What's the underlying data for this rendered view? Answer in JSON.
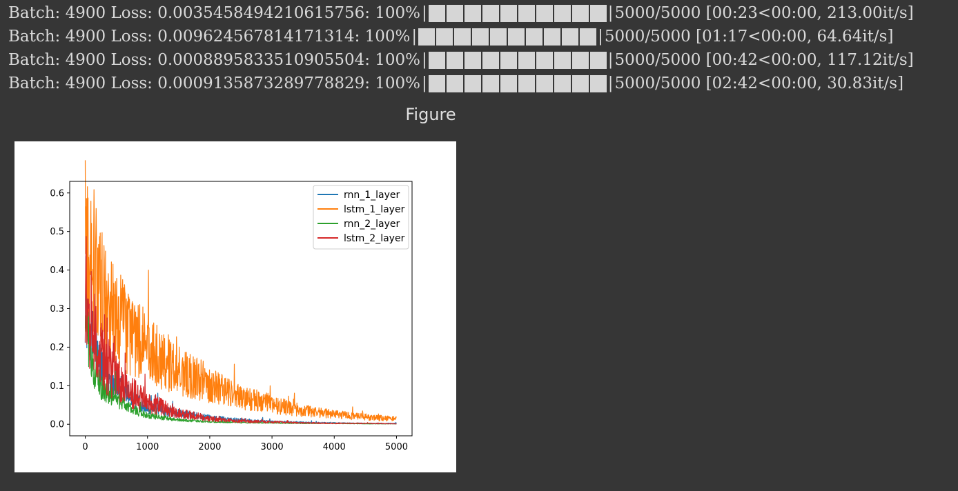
{
  "console": {
    "lines": [
      {
        "prefix": "Batch: 4900 Loss: 0.0035458494210615756: 100%",
        "suffix": " 5000/5000 [00:23<00:00, 213.00it/s]",
        "progress": 1.0
      },
      {
        "prefix": "Batch: 4900 Loss: 0.009624567814171314: 100%",
        "suffix": " 5000/5000 [01:17<00:00, 64.64it/s]",
        "progress": 1.0
      },
      {
        "prefix": "Batch: 4900 Loss: 0.0008895833510905504: 100%",
        "suffix": " 5000/5000 [00:42<00:00, 117.12it/s]",
        "progress": 1.0
      },
      {
        "prefix": "Batch: 4900 Loss: 0.0009135873289778829: 100%",
        "suffix": " 5000/5000 [02:42<00:00, 30.83it/s]",
        "progress": 1.0
      }
    ]
  },
  "figure": {
    "title": "Figure"
  },
  "chart_data": {
    "type": "line",
    "title": "",
    "xlabel": "",
    "ylabel": "",
    "xlim": [
      -250,
      5250
    ],
    "ylim": [
      -0.03,
      0.63
    ],
    "xticks": [
      0,
      1000,
      2000,
      3000,
      4000,
      5000
    ],
    "yticks": [
      0.0,
      0.1,
      0.2,
      0.3,
      0.4,
      0.5,
      0.6
    ],
    "legend_position": "top-right",
    "grid": false,
    "series": [
      {
        "name": "rnn_1_layer",
        "color": "#1f77b4",
        "x": [
          0,
          100,
          200,
          300,
          500,
          750,
          1000,
          1500,
          2000,
          2500,
          3000,
          3500,
          4000,
          4500,
          5000
        ],
        "y": [
          0.3,
          0.2,
          0.15,
          0.12,
          0.09,
          0.06,
          0.04,
          0.025,
          0.015,
          0.01,
          0.006,
          0.004,
          0.003,
          0.002,
          0.002
        ]
      },
      {
        "name": "lstm_1_layer",
        "color": "#ff7f0e",
        "x": [
          0,
          100,
          200,
          300,
          500,
          750,
          1000,
          1500,
          2000,
          2500,
          3000,
          3500,
          4000,
          4500,
          5000
        ],
        "y": [
          0.4,
          0.38,
          0.33,
          0.28,
          0.24,
          0.2,
          0.17,
          0.12,
          0.09,
          0.06,
          0.045,
          0.03,
          0.022,
          0.016,
          0.012
        ]
      },
      {
        "name": "rnn_2_layer",
        "color": "#2ca02c",
        "x": [
          0,
          100,
          200,
          300,
          500,
          750,
          1000,
          1500,
          2000,
          2500,
          3000,
          3500,
          4000,
          4500,
          5000
        ],
        "y": [
          0.25,
          0.14,
          0.1,
          0.08,
          0.06,
          0.035,
          0.02,
          0.01,
          0.006,
          0.004,
          0.003,
          0.002,
          0.002,
          0.001,
          0.001
        ]
      },
      {
        "name": "lstm_2_layer",
        "color": "#d62728",
        "x": [
          0,
          100,
          200,
          300,
          500,
          750,
          1000,
          1500,
          2000,
          2500,
          3000,
          3500,
          4000,
          4500,
          5000
        ],
        "y": [
          0.3,
          0.22,
          0.17,
          0.14,
          0.1,
          0.07,
          0.05,
          0.025,
          0.012,
          0.007,
          0.005,
          0.003,
          0.002,
          0.002,
          0.001
        ]
      }
    ]
  }
}
